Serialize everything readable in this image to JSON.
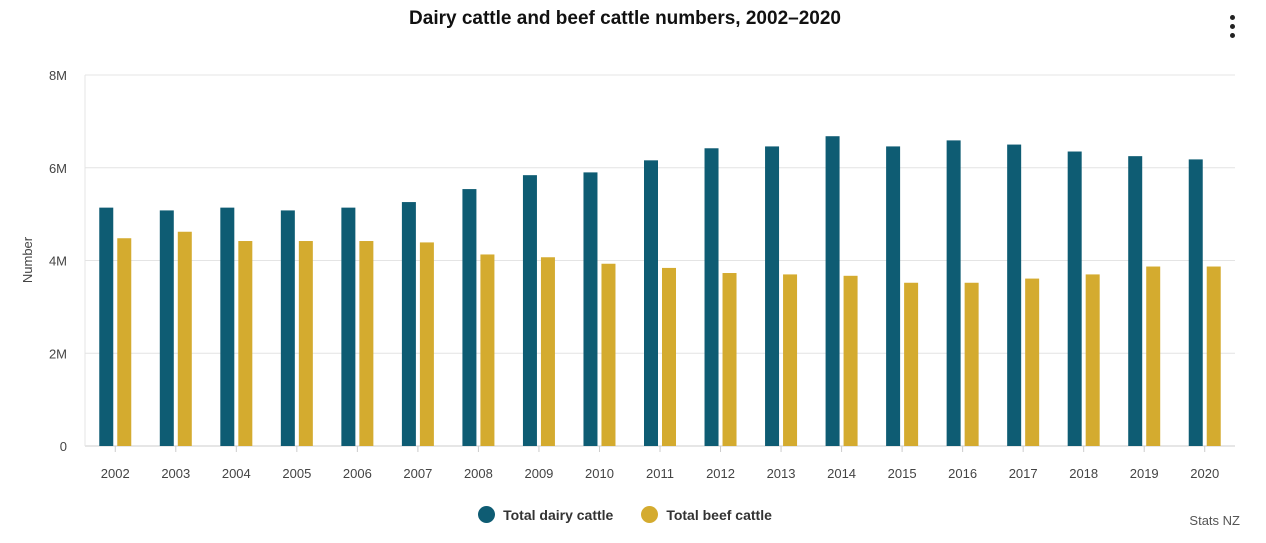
{
  "title": "Dairy cattle and beef cattle numbers, 2002–2020",
  "credits": "Stats NZ",
  "colors": {
    "dairy": "#0e5c73",
    "beef": "#d4ab2f",
    "grid": "#e4e4e4",
    "axis": "#cccccc"
  },
  "chart_data": {
    "type": "bar",
    "title": "Dairy cattle and beef cattle numbers, 2002–2020",
    "xlabel": "",
    "ylabel": "Number",
    "ylim": [
      0,
      8000000
    ],
    "yticks": [
      0,
      2000000,
      4000000,
      6000000,
      8000000
    ],
    "ytick_labels": [
      "0",
      "2M",
      "4M",
      "6M",
      "8M"
    ],
    "grid": true,
    "legend_position": "bottom-center",
    "categories": [
      "2002",
      "2003",
      "2004",
      "2005",
      "2006",
      "2007",
      "2008",
      "2009",
      "2010",
      "2011",
      "2012",
      "2013",
      "2014",
      "2015",
      "2016",
      "2017",
      "2018",
      "2019",
      "2020"
    ],
    "series": [
      {
        "name": "Total dairy cattle",
        "values": [
          5140000,
          5080000,
          5140000,
          5080000,
          5140000,
          5260000,
          5540000,
          5840000,
          5900000,
          6160000,
          6420000,
          6460000,
          6680000,
          6460000,
          6590000,
          6500000,
          6350000,
          6250000,
          6180000
        ]
      },
      {
        "name": "Total beef cattle",
        "values": [
          4480000,
          4620000,
          4420000,
          4420000,
          4420000,
          4390000,
          4130000,
          4070000,
          3930000,
          3840000,
          3730000,
          3700000,
          3670000,
          3520000,
          3520000,
          3610000,
          3700000,
          3870000,
          3870000
        ]
      }
    ]
  }
}
